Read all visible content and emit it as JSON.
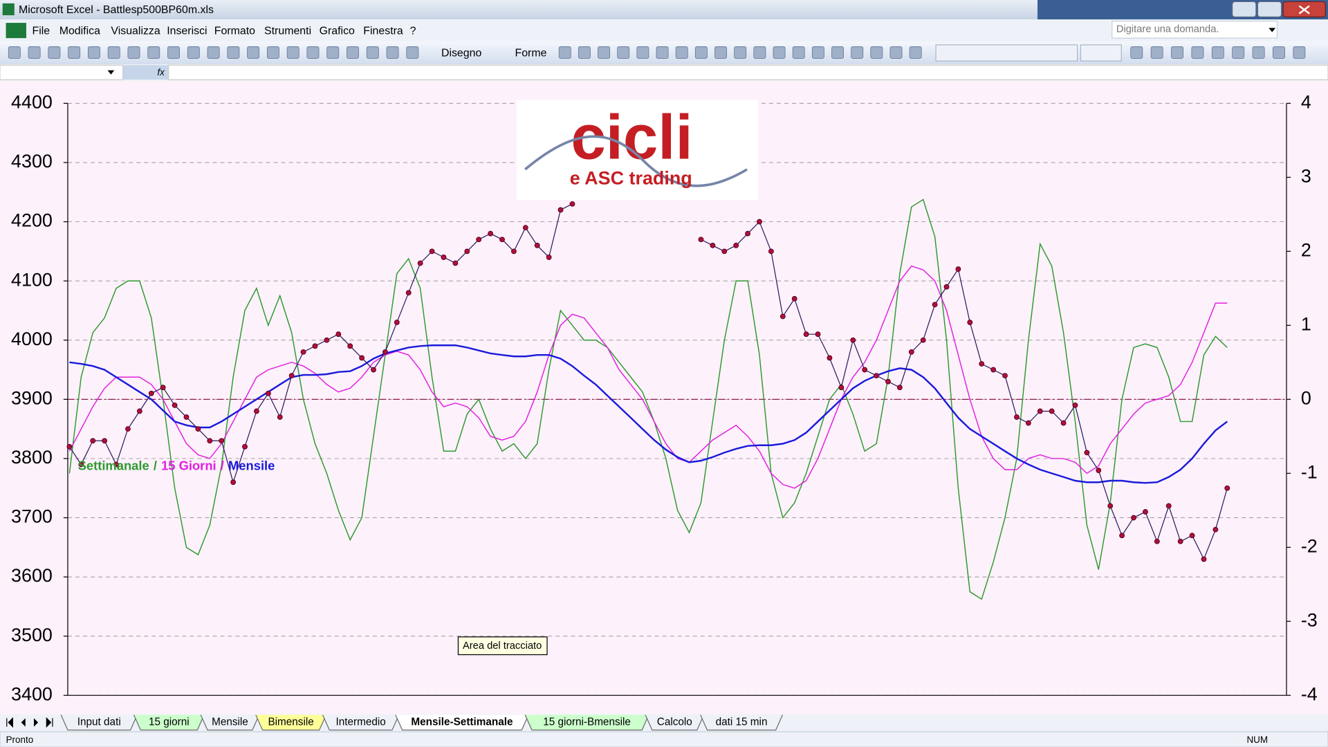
{
  "window": {
    "title": "Microsoft Excel - Battlesp500BP60m.xls"
  },
  "menu": [
    "File",
    "Modifica",
    "Visualizza",
    "Inserisci",
    "Formato",
    "Strumenti",
    "Grafico",
    "Finestra",
    "?"
  ],
  "help_box": "Digitare una domanda.",
  "toolbar": {
    "draw": "Disegno",
    "shapes": "Forme"
  },
  "formula_icon": "fx",
  "logo": {
    "title": "cicli",
    "subtitle": "e ASC trading"
  },
  "tooltip": "Area del tracciato",
  "legend_separator": "/",
  "sheet_tabs": [
    {
      "label": "Input dati"
    },
    {
      "label": "15 giorni",
      "color": "#ccffcc"
    },
    {
      "label": "Mensile"
    },
    {
      "label": "Bimensile",
      "color": "#ffff99"
    },
    {
      "label": "Intermedio"
    },
    {
      "label": "Mensile-Settimanale",
      "active": true
    },
    {
      "label": "15 giorni-Bmensile",
      "color": "#ccffcc"
    },
    {
      "label": "Calcolo"
    },
    {
      "label": "dati 15 min"
    }
  ],
  "status": {
    "left": "Pronto",
    "right": "NUM"
  },
  "chart_data": {
    "type": "line",
    "ylim": [
      3400,
      4400
    ],
    "yticks": [
      3400,
      3500,
      3600,
      3700,
      3800,
      3900,
      4000,
      4100,
      4200,
      4300,
      4400
    ],
    "y2lim": [
      -4,
      4
    ],
    "y2ticks": [
      -4,
      -3,
      -2,
      -1,
      0,
      1,
      2,
      3,
      4
    ],
    "grid": true,
    "series": [
      {
        "name": "Settimanale",
        "color": "#2e9a2e",
        "axis": "y2",
        "values": [
          -1.0,
          0.3,
          0.9,
          1.1,
          1.5,
          1.6,
          1.6,
          1.1,
          0.0,
          -1.2,
          -2.0,
          -2.1,
          -1.7,
          -0.9,
          0.3,
          1.2,
          1.5,
          1.0,
          1.4,
          0.9,
          0.0,
          -0.6,
          -1.0,
          -1.5,
          -1.9,
          -1.6,
          -0.5,
          0.6,
          1.7,
          1.9,
          1.5,
          0.3,
          -0.7,
          -0.7,
          -0.2,
          0.0,
          -0.4,
          -0.7,
          -0.6,
          -0.8,
          -0.6,
          0.4,
          1.2,
          1.0,
          0.8,
          0.8,
          0.7,
          0.5,
          0.3,
          0.1,
          -0.3,
          -0.8,
          -1.5,
          -1.8,
          -1.4,
          -0.3,
          0.8,
          1.6,
          1.6,
          0.6,
          -1.0,
          -1.6,
          -1.4,
          -1.0,
          -0.5,
          0.0,
          0.2,
          -0.2,
          -0.7,
          -0.6,
          0.3,
          1.7,
          2.6,
          2.7,
          2.2,
          0.8,
          -1.2,
          -2.6,
          -2.7,
          -2.2,
          -1.6,
          -0.8,
          0.8,
          2.1,
          1.8,
          0.9,
          -0.3,
          -1.7,
          -2.3,
          -1.4,
          0.0,
          0.7,
          0.75,
          0.7,
          0.3,
          -0.3,
          -0.3,
          0.6,
          0.85,
          0.7
        ]
      },
      {
        "name": "15 Giorni",
        "color": "#e020e0",
        "axis": "y2",
        "values": [
          -0.7,
          -0.4,
          -0.1,
          0.15,
          0.3,
          0.3,
          0.3,
          0.2,
          0.0,
          -0.3,
          -0.6,
          -0.75,
          -0.8,
          -0.6,
          -0.3,
          0.0,
          0.3,
          0.4,
          0.45,
          0.5,
          0.45,
          0.35,
          0.2,
          0.1,
          0.15,
          0.3,
          0.5,
          0.6,
          0.65,
          0.6,
          0.4,
          0.1,
          -0.1,
          -0.05,
          -0.1,
          -0.25,
          -0.5,
          -0.55,
          -0.5,
          -0.3,
          0.1,
          0.6,
          1.0,
          1.15,
          1.1,
          0.9,
          0.7,
          0.4,
          0.2,
          0.0,
          -0.3,
          -0.6,
          -0.8,
          -0.85,
          -0.7,
          -0.55,
          -0.45,
          -0.35,
          -0.5,
          -0.7,
          -1.0,
          -1.15,
          -1.2,
          -1.1,
          -0.8,
          -0.4,
          0.0,
          0.3,
          0.5,
          0.8,
          1.2,
          1.6,
          1.8,
          1.75,
          1.6,
          1.2,
          0.6,
          0.0,
          -0.5,
          -0.8,
          -0.95,
          -0.95,
          -0.8,
          -0.75,
          -0.8,
          -0.8,
          -0.85,
          -1.0,
          -0.9,
          -0.6,
          -0.4,
          -0.2,
          -0.05,
          0.0,
          0.05,
          0.2,
          0.5,
          0.9,
          1.3,
          1.3
        ]
      },
      {
        "name": "Mensile",
        "color": "#1a1adc",
        "axis": "y2",
        "values": [
          0.5,
          0.48,
          0.45,
          0.4,
          0.3,
          0.2,
          0.1,
          0.0,
          -0.15,
          -0.3,
          -0.35,
          -0.38,
          -0.38,
          -0.3,
          -0.2,
          -0.1,
          0.0,
          0.1,
          0.2,
          0.3,
          0.33,
          0.33,
          0.34,
          0.37,
          0.38,
          0.45,
          0.55,
          0.62,
          0.66,
          0.7,
          0.72,
          0.73,
          0.73,
          0.73,
          0.7,
          0.66,
          0.62,
          0.6,
          0.58,
          0.58,
          0.6,
          0.6,
          0.55,
          0.45,
          0.32,
          0.2,
          0.05,
          -0.1,
          -0.25,
          -0.4,
          -0.55,
          -0.68,
          -0.78,
          -0.85,
          -0.83,
          -0.78,
          -0.72,
          -0.67,
          -0.63,
          -0.62,
          -0.62,
          -0.6,
          -0.55,
          -0.45,
          -0.3,
          -0.15,
          0.0,
          0.15,
          0.25,
          0.32,
          0.38,
          0.42,
          0.4,
          0.3,
          0.15,
          -0.05,
          -0.25,
          -0.4,
          -0.5,
          -0.6,
          -0.7,
          -0.8,
          -0.88,
          -0.95,
          -1.0,
          -1.05,
          -1.1,
          -1.12,
          -1.12,
          -1.1,
          -1.1,
          -1.12,
          -1.13,
          -1.12,
          -1.05,
          -0.95,
          -0.8,
          -0.6,
          -0.42,
          -0.3
        ]
      },
      {
        "color": "#b0103c",
        "axis": "y",
        "markers": true,
        "values": [
          3820,
          3790,
          3830,
          3830,
          3790,
          3850,
          3880,
          3910,
          3920,
          3890,
          3870,
          3850,
          3830,
          3830,
          3760,
          3820,
          3880,
          3910,
          3870,
          3940,
          3980,
          3990,
          4000,
          4010,
          3990,
          3970,
          3950,
          3980,
          4030,
          4080,
          4130,
          4150,
          4140,
          4130,
          4150,
          4170,
          4180,
          4170,
          4150,
          4190,
          4160,
          4140,
          4220,
          4230,
          null,
          null,
          null,
          null,
          null,
          null,
          null,
          null,
          null,
          null,
          4170,
          4160,
          4150,
          4160,
          4180,
          4200,
          4150,
          4040,
          4070,
          4010,
          4010,
          3970,
          3920,
          4000,
          3950,
          3940,
          3930,
          3920,
          3980,
          4000,
          4060,
          4090,
          4120,
          4030,
          3960,
          3950,
          3940,
          3870,
          3860,
          3880,
          3880,
          3860,
          3890,
          3810,
          3780,
          3720,
          3670,
          3700,
          3710,
          3660,
          3720,
          3660,
          3670,
          3630,
          3680,
          3750
        ]
      }
    ]
  }
}
